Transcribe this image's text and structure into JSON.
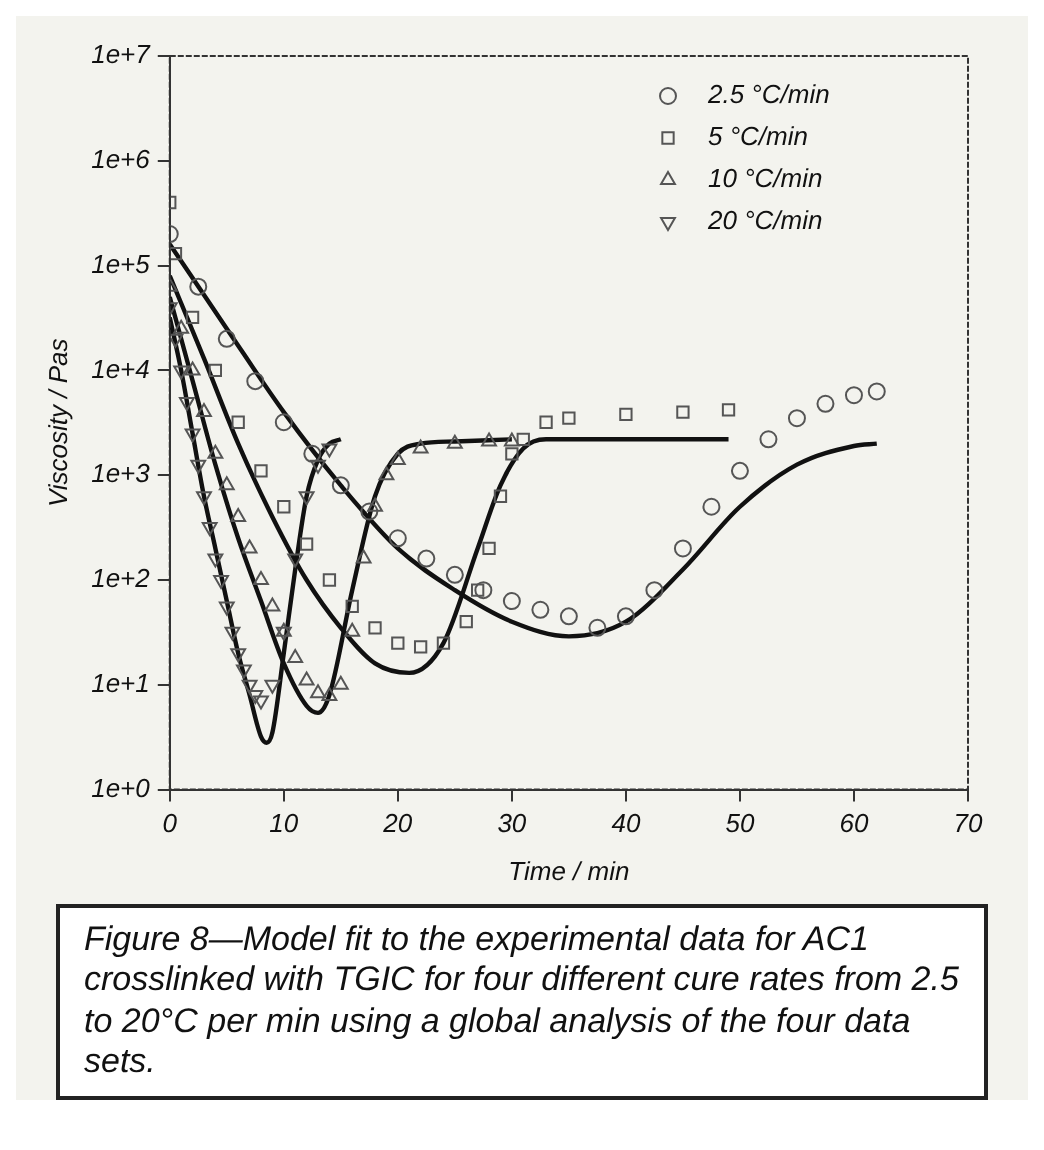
{
  "chart_data": {
    "type": "scatter",
    "xlabel": "Time / min",
    "ylabel": "Viscosity / Pas",
    "log": "y",
    "grid": false,
    "legend": "top right",
    "xlim": [
      0,
      70
    ],
    "xticks": [
      0,
      10,
      20,
      30,
      40,
      50,
      60,
      70
    ],
    "ylim": [
      1,
      10000000
    ],
    "yticks": [
      {
        "value": 1,
        "label": "1e+0"
      },
      {
        "value": 10,
        "label": "1e+1"
      },
      {
        "value": 100,
        "label": "1e+2"
      },
      {
        "value": 1000,
        "label": "1e+3"
      },
      {
        "value": 10000,
        "label": "1e+4"
      },
      {
        "value": 100000,
        "label": "1e+5"
      },
      {
        "value": 1000000,
        "label": "1e+6"
      },
      {
        "value": 10000000,
        "label": "1e+7"
      }
    ],
    "series": [
      {
        "name": "2.5 °C/min",
        "type": "scatter",
        "marker": "circle",
        "color": "#555555",
        "x": [
          0,
          2.5,
          5,
          7.5,
          10,
          12.5,
          15,
          17.5,
          20,
          22.5,
          25,
          27.5,
          30,
          32.5,
          35,
          37.5,
          40,
          42.5,
          45,
          47.5,
          50,
          52.5,
          55,
          57.5,
          60,
          62
        ],
        "values": [
          200000,
          63000,
          20000,
          7900,
          3200,
          1600,
          800,
          450,
          250,
          160,
          112,
          80,
          63,
          52,
          45,
          35,
          45,
          80,
          200,
          500,
          1100,
          2200,
          3500,
          4800,
          5800,
          6300
        ]
      },
      {
        "name": "5 °C/min",
        "type": "scatter",
        "marker": "square",
        "color": "#555555",
        "x": [
          0,
          0.5,
          2,
          4,
          6,
          8,
          10,
          12,
          14,
          16,
          18,
          20,
          22,
          24,
          26,
          27,
          28,
          29,
          30,
          31,
          33,
          35,
          40,
          45,
          49
        ],
        "values": [
          400000,
          130000,
          32000,
          10000,
          3200,
          1100,
          500,
          220,
          100,
          56,
          35,
          25,
          23,
          25,
          40,
          80,
          200,
          630,
          1600,
          2200,
          3200,
          3500,
          3800,
          4000,
          4200
        ]
      },
      {
        "name": "10 °C/min",
        "type": "scatter",
        "marker": "triangle",
        "color": "#555555",
        "x": [
          0,
          1,
          2,
          3,
          4,
          5,
          6,
          7,
          8,
          9,
          10,
          11,
          12,
          13,
          14,
          15,
          16,
          17,
          18,
          19,
          20,
          22,
          25,
          28,
          30
        ],
        "values": [
          63000,
          25000,
          10000,
          4000,
          1600,
          800,
          400,
          200,
          100,
          56,
          32,
          18,
          11,
          8.3,
          7.8,
          10,
          32,
          160,
          500,
          1000,
          1400,
          1800,
          2000,
          2100,
          2100
        ]
      },
      {
        "name": "20 °C/min",
        "type": "scatter",
        "marker": "triangle-down",
        "color": "#555555",
        "x": [
          0,
          0.5,
          1,
          1.5,
          2,
          2.5,
          3,
          3.5,
          4,
          4.5,
          5,
          5.5,
          6,
          6.5,
          7,
          7.5,
          8,
          9,
          10,
          11,
          12,
          13,
          14
        ],
        "values": [
          40000,
          20000,
          10000,
          5000,
          2500,
          1260,
          630,
          320,
          160,
          100,
          56,
          32,
          20,
          14,
          10,
          8,
          7.1,
          10,
          32,
          160,
          630,
          1260,
          1800
        ]
      },
      {
        "type": "line",
        "marker": "none",
        "line_style": "solid",
        "color": "#111111",
        "x": [
          0,
          5,
          10,
          15,
          20,
          25,
          30,
          35,
          40,
          45,
          50,
          55,
          60,
          62
        ],
        "values": [
          160000,
          25000,
          4000,
          800,
          200,
          80,
          40,
          29,
          40,
          126,
          500,
          1260,
          1900,
          2000
        ]
      },
      {
        "type": "line",
        "marker": "none",
        "line_style": "solid",
        "color": "#111111",
        "x": [
          0,
          3,
          6,
          9,
          12,
          15,
          18,
          21,
          24,
          27,
          29,
          31,
          33,
          40,
          49
        ],
        "values": [
          80000,
          13000,
          2000,
          400,
          100,
          35,
          16,
          13,
          25,
          200,
          800,
          1800,
          2200,
          2200,
          2200
        ]
      },
      {
        "type": "line",
        "marker": "none",
        "line_style": "solid",
        "color": "#111111",
        "x": [
          0,
          2,
          4,
          6,
          8,
          10,
          12,
          13,
          14,
          16,
          18,
          20,
          22,
          25,
          30
        ],
        "values": [
          50000,
          8000,
          1260,
          250,
          63,
          16,
          6.3,
          5.4,
          8,
          80,
          630,
          1600,
          2000,
          2100,
          2200
        ]
      },
      {
        "type": "line",
        "marker": "none",
        "line_style": "solid",
        "color": "#111111",
        "x": [
          0,
          1,
          2,
          3,
          4,
          5,
          6,
          7,
          8,
          8.5,
          9,
          10,
          11,
          12,
          13,
          14,
          15
        ],
        "values": [
          32000,
          10000,
          2500,
          630,
          200,
          63,
          20,
          8,
          3.2,
          2.8,
          3.5,
          20,
          126,
          630,
          1400,
          2000,
          2200
        ]
      }
    ],
    "annotations": [
      "Figure 8—Model fit to the experimental data for AC1 crosslinked with TGIC for four different cure rates from 2.5 to 20°C per min using a global analysis of the four data sets."
    ]
  }
}
